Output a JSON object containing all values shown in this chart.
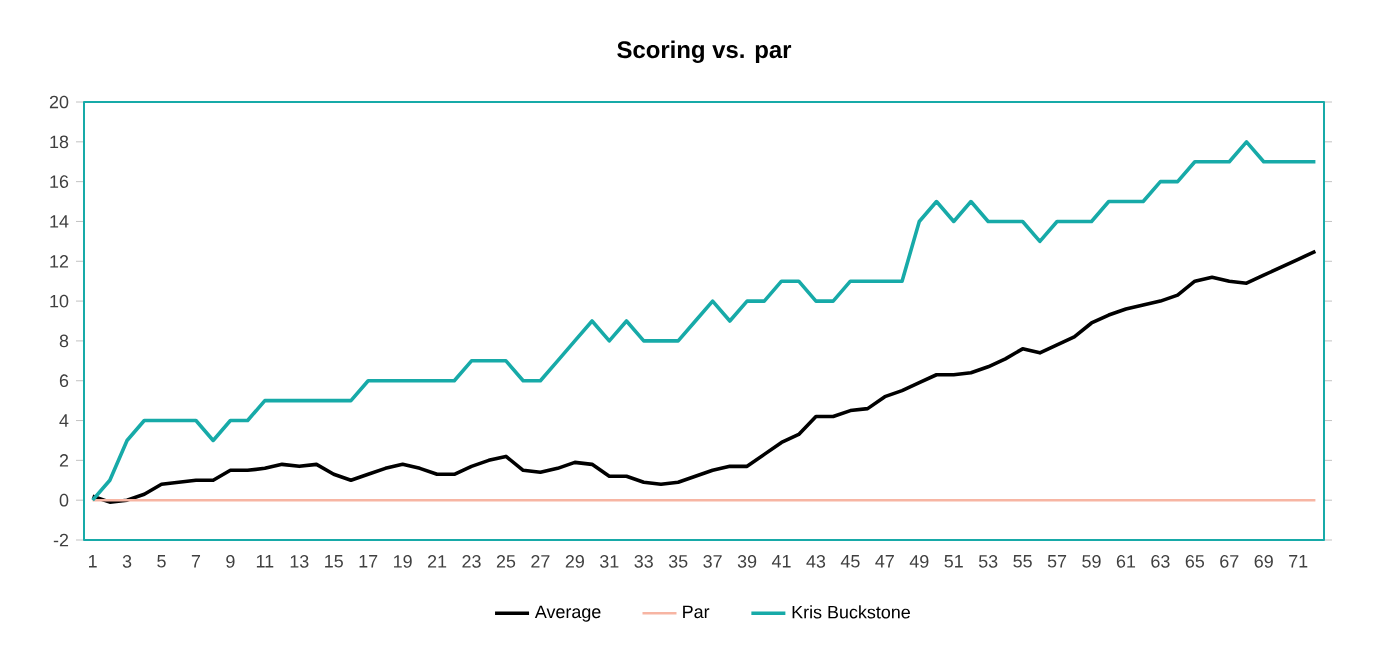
{
  "chart_data": {
    "type": "line",
    "title": "Scoring vs. par",
    "categories": [
      "1",
      null,
      "3",
      null,
      "5",
      null,
      "7",
      null,
      "9",
      null,
      "11",
      null,
      "13",
      null,
      "15",
      null,
      "17",
      null,
      "19",
      null,
      "21",
      null,
      "23",
      null,
      "25",
      null,
      "27",
      null,
      "29",
      null,
      "31",
      null,
      "33",
      null,
      "35",
      null,
      "37",
      null,
      "39",
      null,
      "41",
      null,
      "43",
      null,
      "45",
      null,
      "47",
      null,
      "49",
      null,
      "51",
      null,
      "53",
      null,
      "55",
      null,
      "57",
      null,
      "59",
      null,
      "61",
      null,
      "63",
      null,
      "65",
      null,
      "67",
      null,
      "69",
      null,
      "71",
      null
    ],
    "series": [
      {
        "name": "Average",
        "color": "#000000",
        "values": [
          0.2,
          -0.1,
          0.0,
          0.3,
          0.8,
          0.9,
          1.0,
          1.0,
          1.5,
          1.5,
          1.6,
          1.8,
          1.7,
          1.8,
          1.3,
          1.0,
          1.3,
          1.6,
          1.8,
          1.6,
          1.3,
          1.3,
          1.7,
          2.0,
          2.2,
          1.5,
          1.4,
          1.6,
          1.9,
          1.8,
          1.2,
          1.2,
          0.9,
          0.8,
          0.9,
          1.2,
          1.5,
          1.7,
          1.7,
          2.3,
          2.9,
          3.3,
          4.2,
          4.2,
          4.5,
          4.6,
          5.2,
          5.5,
          5.9,
          6.3,
          6.3,
          6.4,
          6.7,
          7.1,
          7.6,
          7.4,
          7.8,
          8.2,
          8.9,
          9.3,
          9.6,
          9.8,
          10.0,
          10.3,
          11.0,
          11.2,
          11.0,
          10.9,
          11.3,
          11.7,
          12.1,
          12.5
        ]
      },
      {
        "name": "Par",
        "color": "#f7b5a3",
        "values": [
          0,
          0,
          0,
          0,
          0,
          0,
          0,
          0,
          0,
          0,
          0,
          0,
          0,
          0,
          0,
          0,
          0,
          0,
          0,
          0,
          0,
          0,
          0,
          0,
          0,
          0,
          0,
          0,
          0,
          0,
          0,
          0,
          0,
          0,
          0,
          0,
          0,
          0,
          0,
          0,
          0,
          0,
          0,
          0,
          0,
          0,
          0,
          0,
          0,
          0,
          0,
          0,
          0,
          0,
          0,
          0,
          0,
          0,
          0,
          0,
          0,
          0,
          0,
          0,
          0,
          0,
          0,
          0,
          0,
          0,
          0,
          0
        ]
      },
      {
        "name": "Kris Buckstone",
        "color": "#17aaa8",
        "values": [
          0,
          1,
          3,
          4,
          4,
          4,
          4,
          3,
          4,
          4,
          5,
          5,
          5,
          5,
          5,
          5,
          6,
          6,
          6,
          6,
          6,
          6,
          7,
          7,
          7,
          6,
          6,
          7,
          8,
          9,
          8,
          9,
          8,
          8,
          8,
          9,
          10,
          9,
          10,
          10,
          11,
          11,
          10,
          10,
          11,
          11,
          11,
          11,
          14,
          15,
          14,
          15,
          14,
          14,
          14,
          13,
          14,
          14,
          14,
          15,
          15,
          15,
          16,
          16,
          17,
          17,
          17,
          18,
          17,
          17,
          17,
          17
        ]
      }
    ],
    "ylim": [
      -2,
      20
    ],
    "yticks": [
      -2,
      0,
      2,
      4,
      6,
      8,
      10,
      12,
      14,
      16,
      18,
      20
    ],
    "legend": "bottom"
  }
}
